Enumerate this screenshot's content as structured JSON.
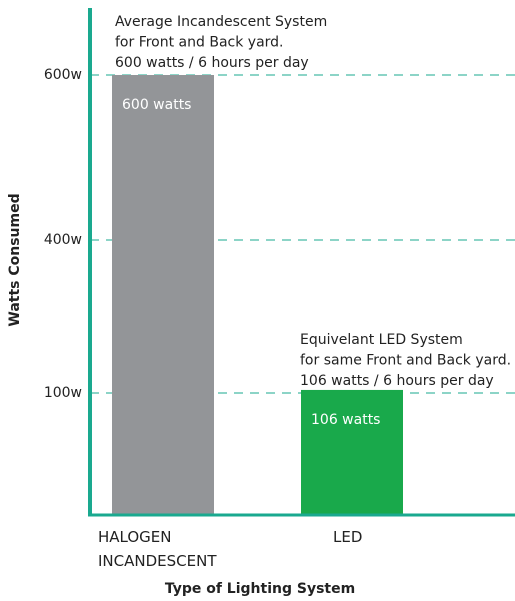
{
  "chart_data": {
    "type": "bar",
    "categories": [
      "HALOGEN INCANDESCENT",
      "LED"
    ],
    "values": [
      600,
      106
    ],
    "value_labels": [
      "600 watts",
      "106 watts"
    ],
    "colors": [
      "#939598",
      "#19a94b"
    ],
    "ylim": [
      0,
      680
    ],
    "yticks": [
      {
        "value": 600,
        "label": "600w"
      },
      {
        "value": 400,
        "label": "400w"
      },
      {
        "value": 100,
        "label": "100w"
      }
    ],
    "grid": true,
    "y_label": "Watts Consumed",
    "x_label": "Type of Lighting System",
    "annotations": [
      {
        "lines": [
          "Average Incandescent System",
          "for Front and Back yard.",
          "600 watts / 6 hours per day"
        ]
      },
      {
        "lines": [
          "Equivelant LED System",
          "for same Front and Back yard.",
          "106 watts / 6 hours per day"
        ]
      }
    ]
  }
}
